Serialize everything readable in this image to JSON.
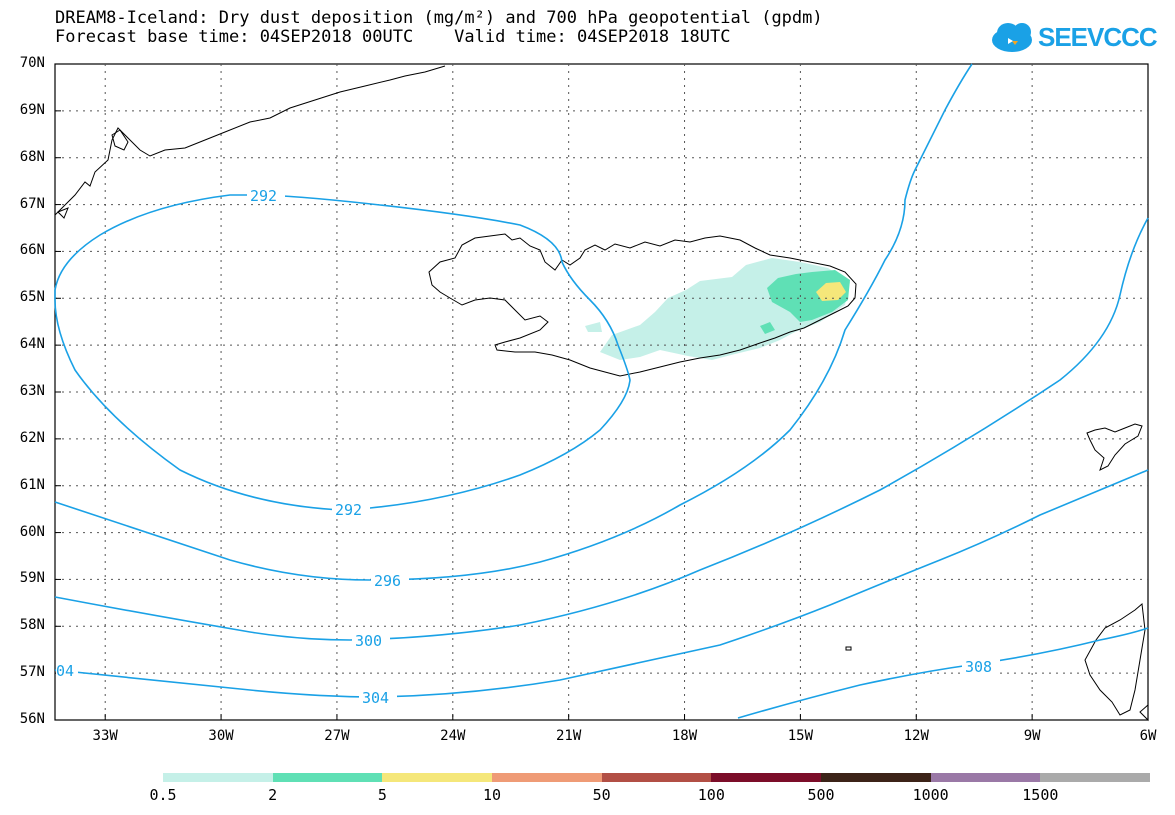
{
  "title_line1": "DREAM8-Iceland: Dry dust deposition (mg/m²) and 700 hPa geopotential (gpdm)",
  "title_line2": "Forecast base time: 04SEP2018 00UTC    Valid time: 04SEP2018 18UTC",
  "logo_text": "SEEVCCC",
  "lat_labels": [
    "70N",
    "69N",
    "68N",
    "67N",
    "66N",
    "65N",
    "64N",
    "63N",
    "62N",
    "61N",
    "60N",
    "59N",
    "58N",
    "57N",
    "56N"
  ],
  "lon_labels": [
    "33W",
    "30W",
    "27W",
    "24W",
    "21W",
    "18W",
    "15W",
    "12W",
    "9W",
    "6W"
  ],
  "contour_labels": [
    "292",
    "292",
    "296",
    "300",
    "304",
    "308",
    "04"
  ],
  "colorbar": {
    "labels": [
      "0.5",
      "2",
      "5",
      "10",
      "50",
      "100",
      "500",
      "1000",
      "1500"
    ],
    "colors": [
      "#c5f0e8",
      "#5fe0b5",
      "#f5e77a",
      "#ef9b76",
      "#b24f45",
      "#7c0d29",
      "#3c2318",
      "#9a78a6",
      "#aaaaaa"
    ]
  },
  "colors": {
    "contour": "#1aa1e6",
    "coast": "#000000",
    "grid": "#555555"
  }
}
